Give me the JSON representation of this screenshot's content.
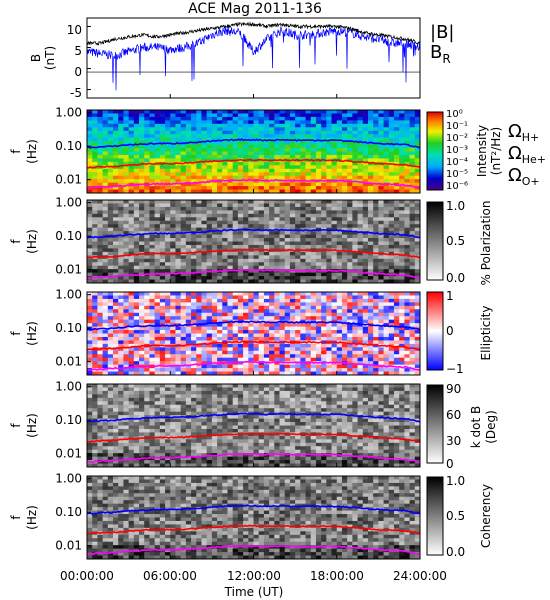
{
  "title": "ACE Mag 2011-136",
  "xlabel": "Time (UT)",
  "xticks": [
    "00:00:00",
    "06:00:00",
    "12:00:00",
    "18:00:00",
    "24:00:00"
  ],
  "freq_ticks": [
    "1.00",
    "0.10",
    "0.01"
  ],
  "colors": {
    "btotal": "#000000",
    "bradial": "#0000ff",
    "ohp": "#0000ff",
    "ohe": "#ff0000",
    "oo": "#ff00ff"
  },
  "panels": {
    "b": {
      "ylabel_top": "B",
      "ylabel_bottom": "(nT)",
      "yticks": [
        "10",
        "5",
        "0",
        "-5"
      ],
      "legend_total": "|B|",
      "legend_radial": "B",
      "legend_radial_sub": "R"
    },
    "intensity": {
      "ylabel_top": "f",
      "ylabel_bottom": "(Hz)",
      "cbar_label_top": "Intensity",
      "cbar_label_bottom": "(nT²/Hz)",
      "cbar_ticks": [
        "10⁰",
        "10⁻¹",
        "10⁻²",
        "10⁻³",
        "10⁻⁴",
        "10⁻⁵",
        "10⁻⁶"
      ],
      "legend": [
        {
          "sym": "Ω",
          "sub": "H+",
          "color": "#0000ff"
        },
        {
          "sym": "Ω",
          "sub": "He+",
          "color": "#ff0000"
        },
        {
          "sym": "Ω",
          "sub": "O+",
          "color": "#ff00ff"
        }
      ]
    },
    "polarization": {
      "ylabel_top": "f",
      "ylabel_bottom": "(Hz)",
      "cbar_label": "% Polarization",
      "cbar_ticks": [
        "1.0",
        "0.5",
        "0.0"
      ]
    },
    "ellipticity": {
      "ylabel_top": "f",
      "ylabel_bottom": "(Hz)",
      "cbar_label": "Ellipticity",
      "cbar_ticks": [
        "1",
        "0",
        "−1"
      ]
    },
    "kdotb": {
      "ylabel_top": "f",
      "ylabel_bottom": "(Hz)",
      "cbar_label_top": "k dot B",
      "cbar_label_bottom": "(Deg)",
      "cbar_ticks": [
        "90",
        "60",
        "30",
        "0"
      ]
    },
    "coherency": {
      "ylabel_top": "f",
      "ylabel_bottom": "(Hz)",
      "cbar_label": "Coherency",
      "cbar_ticks": [
        "1.0",
        "0.5",
        "0.0"
      ]
    }
  },
  "chart_data": {
    "type": "heatmap",
    "title": "ACE Mag 2011-136",
    "xlabel": "Time (UT)",
    "xlim_hours": [
      0,
      24
    ],
    "freq_ylim_hz": [
      0.004,
      1.2
    ],
    "b_ylim_nt": [
      -7,
      12
    ],
    "time_hours": [
      0,
      1,
      2,
      3,
      4,
      5,
      6,
      7,
      8,
      9,
      10,
      11,
      12,
      13,
      14,
      15,
      16,
      17,
      18,
      19,
      20,
      21,
      22,
      23,
      24
    ],
    "btotal_nt": [
      6,
      6,
      7,
      7.5,
      8,
      7.5,
      8,
      8.5,
      9,
      9.5,
      10,
      10.5,
      10.5,
      10,
      10.5,
      10,
      10,
      10,
      10,
      9.5,
      8.5,
      8,
      7.5,
      7,
      6
    ],
    "bradial_nt": [
      4,
      3.5,
      3,
      4,
      5,
      5,
      4.5,
      5,
      6,
      8,
      9,
      8.5,
      4,
      7,
      9,
      8,
      8,
      8.5,
      9,
      8.5,
      7.5,
      7,
      6,
      6,
      5
    ],
    "f_hplus_hz": [
      0.09,
      0.095,
      0.1,
      0.11,
      0.115,
      0.12,
      0.12,
      0.125,
      0.13,
      0.14,
      0.15,
      0.155,
      0.155,
      0.15,
      0.155,
      0.15,
      0.15,
      0.15,
      0.15,
      0.14,
      0.13,
      0.12,
      0.115,
      0.11,
      0.09
    ],
    "f_heplus_hz": [
      0.023,
      0.024,
      0.025,
      0.027,
      0.029,
      0.03,
      0.03,
      0.031,
      0.033,
      0.035,
      0.037,
      0.039,
      0.039,
      0.038,
      0.039,
      0.038,
      0.038,
      0.038,
      0.038,
      0.035,
      0.033,
      0.03,
      0.029,
      0.027,
      0.023
    ],
    "f_oplus_hz": [
      0.0056,
      0.006,
      0.0063,
      0.0068,
      0.0072,
      0.0075,
      0.0075,
      0.0078,
      0.0082,
      0.0088,
      0.0094,
      0.0097,
      0.0097,
      0.0094,
      0.0097,
      0.0094,
      0.0094,
      0.0094,
      0.0094,
      0.0088,
      0.0082,
      0.0075,
      0.0072,
      0.0068,
      0.0056
    ]
  }
}
